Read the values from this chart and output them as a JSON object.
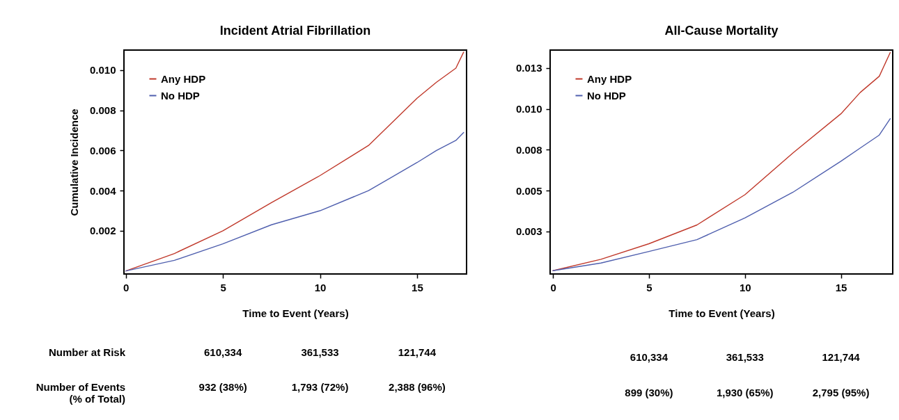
{
  "chart_data": [
    {
      "type": "line",
      "title": "Incident Atrial Fibrillation",
      "xlabel": "Time to Event (Years)",
      "ylabel": "Cumulative Incidence",
      "x": [
        0,
        2.5,
        5,
        7.5,
        10,
        12.5,
        15,
        16,
        17,
        17.4
      ],
      "series": [
        {
          "name": "Any HDP",
          "color": "#c0392b",
          "values": [
            0,
            0.00087,
            0.002,
            0.0034,
            0.00475,
            0.00625,
            0.0086,
            0.0094,
            0.0101,
            0.0109
          ]
        },
        {
          "name": "No HDP",
          "color": "#4f5fae",
          "values": [
            0,
            0.00053,
            0.00135,
            0.0023,
            0.003,
            0.004,
            0.0054,
            0.006,
            0.0065,
            0.0069
          ]
        }
      ],
      "xlim": [
        -0.1,
        17.55
      ],
      "xticks": [
        0,
        5,
        10,
        15
      ],
      "ylim": [
        -0.00015,
        0.011
      ],
      "yticks": [
        {
          "value": 0.002,
          "label": "0.002"
        },
        {
          "value": 0.004,
          "label": "0.004"
        },
        {
          "value": 0.006,
          "label": "0.006"
        },
        {
          "value": 0.008,
          "label": "0.008"
        },
        {
          "value": 0.01,
          "label": "0.010"
        }
      ],
      "legend": "top left",
      "grid": false,
      "annotations": [
        "Number at Risk",
        "610,334",
        "361,533",
        "121,744",
        "Number of Events\n(% of Total)",
        "932 (38%)",
        "1,793 (72%)",
        "2,388 (96%)"
      ]
    },
    {
      "type": "line",
      "title": "All-Cause Mortality",
      "xlabel": "Time to Event (Years)",
      "x": [
        0,
        2.5,
        5,
        7.5,
        10,
        12.5,
        15,
        16,
        17,
        17.57
      ],
      "series": [
        {
          "name": "Any HDP",
          "color": "#c0392b",
          "values": [
            0.0001,
            0.0008,
            0.00175,
            0.0029,
            0.00475,
            0.0073,
            0.0097,
            0.011,
            0.012,
            0.01345
          ]
        },
        {
          "name": "No HDP",
          "color": "#4f5fae",
          "values": [
            0.0001,
            0.00057,
            0.00128,
            0.002,
            0.00333,
            0.0049,
            0.0068,
            0.0076,
            0.0084,
            0.0094
          ]
        }
      ],
      "xlim": [
        -0.15,
        17.7
      ],
      "xticks": [
        0,
        5,
        10,
        15
      ],
      "ylim": [
        -0.0001,
        0.0136
      ],
      "yticks": [
        {
          "value": 0.0025,
          "label": "0.003"
        },
        {
          "value": 0.005,
          "label": "0.005"
        },
        {
          "value": 0.0075,
          "label": "0.008"
        },
        {
          "value": 0.01,
          "label": "0.010"
        },
        {
          "value": 0.0125,
          "label": "0.013"
        }
      ],
      "legend": "top left",
      "grid": false,
      "annotations": [
        "610,334",
        "361,533",
        "121,744",
        "899 (30%)",
        "1,930 (65%)",
        "2,795 (95%)"
      ]
    }
  ]
}
